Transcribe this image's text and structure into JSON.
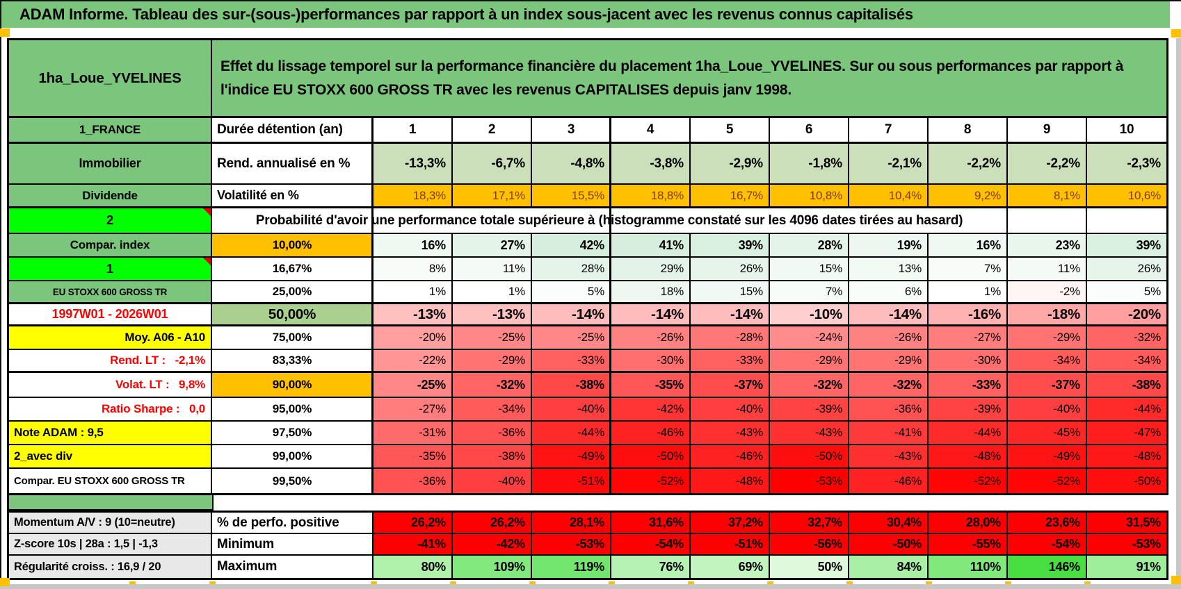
{
  "page_title": "ADAM Informe. Tableau des sur-(sous-)performances par rapport à un index sous-jacent avec les revenus connus capitalisés",
  "placement": {
    "name": "1ha_Loue_YVELINES",
    "description": "Effet du lissage temporel sur la performance financière du placement 1ha_Loue_YVELINES. Sur ou sous performances par rapport à l'indice EU STOXX 600 GROSS TR avec les revenus CAPITALISES depuis janv 1998."
  },
  "duration_header": {
    "country_label": "1_FRANCE",
    "label": "Durée détention (an)",
    "years": [
      "1",
      "2",
      "3",
      "4",
      "5",
      "6",
      "7",
      "8",
      "9",
      "10"
    ]
  },
  "annual_return": {
    "category_label": "Immobilier",
    "label": "Rend. annualisé en %",
    "values": [
      "-13,3%",
      "-6,7%",
      "-4,8%",
      "-3,8%",
      "-2,9%",
      "-1,8%",
      "-2,1%",
      "-2,2%",
      "-2,2%",
      "-2,3%"
    ]
  },
  "volatility": {
    "category_label": "Dividende",
    "label": "Volatilité en %",
    "values": [
      "18,3%",
      "17,1%",
      "15,5%",
      "18,8%",
      "16,7%",
      "10,8%",
      "10,4%",
      "9,2%",
      "8,1%",
      "10,6%"
    ]
  },
  "probability_header": {
    "side_label": "2",
    "text": "Probabilité d'avoir une performance totale supérieure à (histogramme constaté sur les 4096 dates tirées au hasard)"
  },
  "probability_rows": [
    {
      "side_label": "Compar. index",
      "quantile": "10,00%",
      "values": [
        16,
        27,
        42,
        41,
        39,
        28,
        19,
        16,
        23,
        39
      ]
    },
    {
      "side_label": "1",
      "quantile": "16,67%",
      "values": [
        8,
        11,
        28,
        29,
        26,
        15,
        13,
        7,
        11,
        26
      ]
    },
    {
      "side_label": "EU STOXX 600 GROSS TR",
      "quantile": "25,00%",
      "values": [
        1,
        1,
        5,
        18,
        15,
        7,
        6,
        1,
        -2,
        5
      ]
    },
    {
      "side_label": "1997W01 - 2026W01",
      "quantile": "50,00%",
      "values": [
        -13,
        -13,
        -14,
        -14,
        -14,
        -10,
        -14,
        -16,
        -18,
        -20
      ]
    },
    {
      "side_label": "Moy. A06 - A10",
      "quantile": "75,00%",
      "values": [
        -20,
        -25,
        -25,
        -26,
        -28,
        -24,
        -26,
        -27,
        -29,
        -32
      ]
    },
    {
      "side_label": "Rend. LT :   -2,1%",
      "quantile": "83,33%",
      "values": [
        -22,
        -29,
        -33,
        -30,
        -33,
        -29,
        -29,
        -30,
        -34,
        -34
      ]
    },
    {
      "side_label": "Volat. LT :   9,8%",
      "quantile": "90,00%",
      "values": [
        -25,
        -32,
        -38,
        -35,
        -37,
        -32,
        -32,
        -33,
        -37,
        -38
      ]
    },
    {
      "side_label": "Ratio Sharpe :   0,0",
      "quantile": "95,00%",
      "values": [
        -27,
        -34,
        -40,
        -42,
        -40,
        -39,
        -36,
        -39,
        -40,
        -44
      ]
    },
    {
      "side_label": "Note ADAM : 9,5",
      "quantile": "97,50%",
      "values": [
        -31,
        -36,
        -44,
        -46,
        -43,
        -43,
        -41,
        -44,
        -45,
        -47
      ]
    },
    {
      "side_label": "2_avec div",
      "quantile": "99,00%",
      "values": [
        -35,
        -38,
        -49,
        -50,
        -46,
        -50,
        -43,
        -48,
        -49,
        -48
      ]
    },
    {
      "side_label": "Compar. EU STOXX 600 GROSS TR",
      "quantile": "99,50%",
      "values": [
        -36,
        -40,
        -51,
        -52,
        -48,
        -53,
        -46,
        -52,
        -52,
        -50
      ]
    }
  ],
  "summary_rows": [
    {
      "side_label": "Momentum A/V : 9 (10=neutre)",
      "label": "% de perfo. positive",
      "values": [
        "26,2%",
        "26,2%",
        "28,1%",
        "31,6%",
        "37,2%",
        "32,7%",
        "30,4%",
        "28,0%",
        "23,6%",
        "31,5%"
      ]
    },
    {
      "side_label": "Z-score 10s | 28a : 1,5 | -1,3",
      "label": "Minimum",
      "values": [
        -41,
        -42,
        -53,
        -54,
        -51,
        -56,
        -50,
        -55,
        -54,
        -53
      ]
    },
    {
      "side_label": "Régularité croiss. : 16,9 / 20",
      "label": "Maximum",
      "values": [
        80,
        109,
        119,
        76,
        69,
        50,
        84,
        110,
        146,
        91
      ]
    }
  ],
  "colors": {
    "header_green": "#7CC57C",
    "lime": "#00FF00",
    "orange": "#FFC000",
    "yellow": "#FFFF00",
    "median_green": "#A9D08E",
    "light_green": "#CBE0BA",
    "red": "#FF0000",
    "gray_label": "#E9E8E8",
    "vol_text": "#843C0C",
    "accent_orange_marker": "#FFC000"
  }
}
